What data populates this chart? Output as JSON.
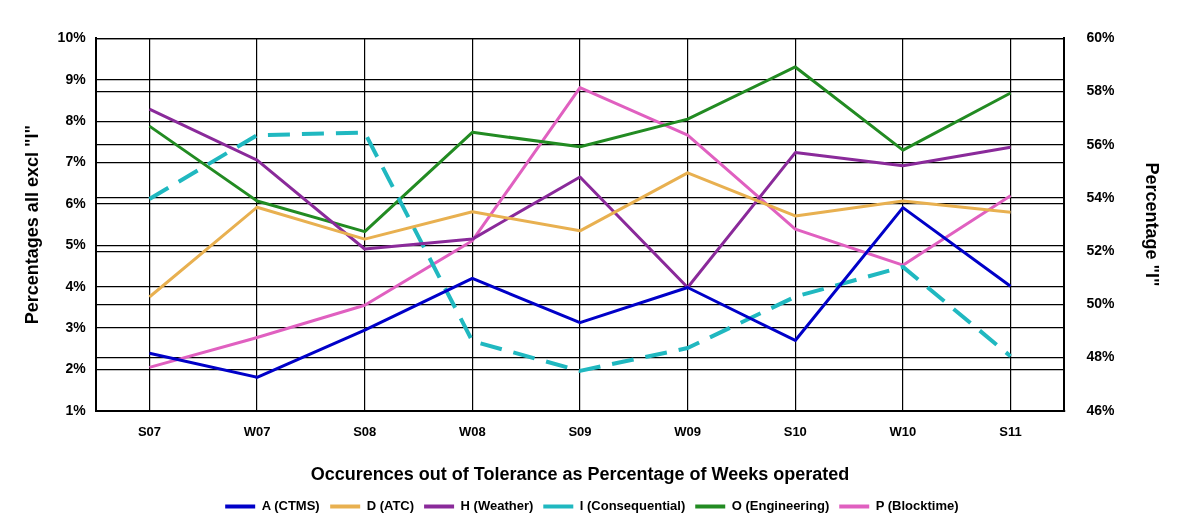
{
  "chart_data": {
    "type": "line",
    "xlabel": "Occurences out of Tolerance as Percentage of Weeks operated",
    "ylabel": "Percentages all excl \"I\"",
    "y2label": "Percentage \"I\"",
    "categories": [
      "S07",
      "W07",
      "S08",
      "W08",
      "S09",
      "W09",
      "S10",
      "W10",
      "S11"
    ],
    "series": [
      {
        "name": "A (CTMS)",
        "color": "#0000c8",
        "values": [
          2.39,
          1.81,
          2.95,
          4.2,
          3.13,
          3.98,
          2.7,
          5.91,
          4.01
        ]
      },
      {
        "name": "D (ATC)",
        "color": "#e8b050",
        "values": [
          3.75,
          5.92,
          5.15,
          5.81,
          5.35,
          6.75,
          5.71,
          6.07,
          5.8
        ]
      },
      {
        "name": "H (Weather)",
        "color": "#8a2a9a",
        "values": [
          8.29,
          7.06,
          4.91,
          5.15,
          6.65,
          3.98,
          7.24,
          6.92,
          7.37
        ]
      },
      {
        "name": "I (Consequential)",
        "color": "#20b8c0",
        "axis": "y2",
        "line_style": "dashed",
        "values": [
          53.96,
          56.36,
          56.46,
          48.62,
          47.5,
          48.36,
          50.29,
          51.41,
          48.05
        ]
      },
      {
        "name": "O (Engineering)",
        "color": "#228b22",
        "values": [
          7.88,
          6.07,
          5.33,
          7.73,
          7.38,
          8.05,
          9.31,
          7.3,
          8.68
        ]
      },
      {
        "name": "P (Blocktime)",
        "color": "#e060c0",
        "values": [
          2.05,
          2.77,
          3.55,
          5.11,
          8.81,
          7.66,
          5.39,
          4.52,
          6.2
        ]
      }
    ],
    "ylim": [
      1,
      10
    ],
    "yticks": [
      {
        "value": 1,
        "label": "1%"
      },
      {
        "value": 2,
        "label": "2%"
      },
      {
        "value": 3,
        "label": "3%"
      },
      {
        "value": 4,
        "label": "4%"
      },
      {
        "value": 5,
        "label": "5%"
      },
      {
        "value": 6,
        "label": "6%"
      },
      {
        "value": 7,
        "label": "7%"
      },
      {
        "value": 8,
        "label": "8%"
      },
      {
        "value": 9,
        "label": "9%"
      },
      {
        "value": 10,
        "label": "10%"
      }
    ],
    "y2lim": [
      46,
      60
    ],
    "y2ticks": [
      {
        "value": 46,
        "label": "46%"
      },
      {
        "value": 48,
        "label": "48%"
      },
      {
        "value": 50,
        "label": "50%"
      },
      {
        "value": 52,
        "label": "52%"
      },
      {
        "value": 54,
        "label": "54%"
      },
      {
        "value": 56,
        "label": "56%"
      },
      {
        "value": 58,
        "label": "58%"
      },
      {
        "value": 60,
        "label": "60%"
      }
    ],
    "grid": true,
    "legend": "bottom",
    "marker": "none",
    "line_style": "solid"
  }
}
